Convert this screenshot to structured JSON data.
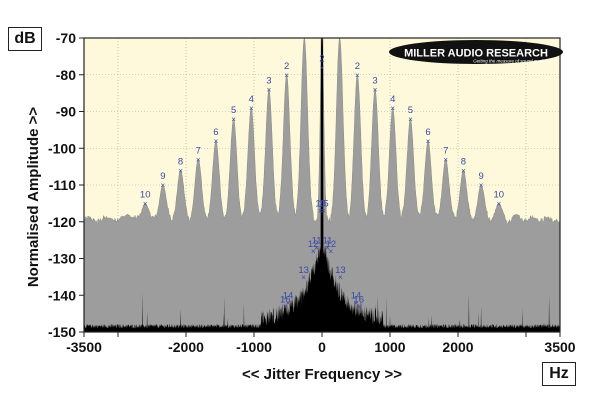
{
  "units": {
    "y": "dB",
    "x": "Hz"
  },
  "logo": {
    "name": "MILLER AUDIO RESEARCH",
    "tagline": "Getting the measure of sound quality"
  },
  "colors": {
    "background": "#fdf9da",
    "grey_series": "#9d9d9d",
    "black_series": "#000000",
    "markers": "#3949ab",
    "gridlines": "#a9a9a9"
  },
  "chart_data": {
    "type": "area",
    "title": "",
    "xlabel": "<< Jitter Frequency >>",
    "ylabel": "Normalised Amplitude >>",
    "xlim": [
      -3500,
      3500
    ],
    "ylim": [
      -150,
      -70
    ],
    "x_ticks": [
      -3500,
      -2000,
      -1000,
      0,
      1000,
      2000,
      3500
    ],
    "y_ticks": [
      -70,
      -80,
      -90,
      -100,
      -110,
      -120,
      -130,
      -140,
      -150
    ],
    "grid": true,
    "series": [
      {
        "values": {
          "floor": -119.5,
          "peak_spacing_hz": 260,
          "center_peak_db": -70,
          "sidebands": [
            {
              "n": 1,
              "x": 260,
              "y": -70
            },
            {
              "n": 2,
              "x": 520,
              "y": -80
            },
            {
              "n": 3,
              "x": 780,
              "y": -84
            },
            {
              "n": 4,
              "x": 1040,
              "y": -89
            },
            {
              "n": 5,
              "x": 1300,
              "y": -92
            },
            {
              "n": 6,
              "x": 1560,
              "y": -98
            },
            {
              "n": 7,
              "x": 1820,
              "y": -103
            },
            {
              "n": 8,
              "x": 2080,
              "y": -106
            },
            {
              "n": 9,
              "x": 2340,
              "y": -110
            },
            {
              "n": 10,
              "x": 2600,
              "y": -115
            },
            {
              "n": 11,
              "x": 2860,
              "y": -118
            },
            {
              "n": 12,
              "x": 3120,
              "y": -119
            },
            {
              "n": 13,
              "x": 3380,
              "y": -120
            }
          ]
        }
      },
      {
        "values": {
          "floor": -149,
          "center_peak_db": -73,
          "labelled_points": [
            {
              "label": "11",
              "x": -80,
              "y": -127
            },
            {
              "label": "12",
              "x": -130,
              "y": -128
            },
            {
              "label": "13",
              "x": -270,
              "y": -135
            },
            {
              "label": "14",
              "x": -500,
              "y": -142
            },
            {
              "label": "15",
              "x": -20,
              "y": -117
            },
            {
              "label": "16",
              "x": -540,
              "y": -143
            },
            {
              "label": "11",
              "x": 80,
              "y": -127
            },
            {
              "label": "12",
              "x": 130,
              "y": -128
            },
            {
              "label": "13",
              "x": 270,
              "y": -135
            },
            {
              "label": "14",
              "x": 500,
              "y": -142
            },
            {
              "label": "15",
              "x": 20,
              "y": -117
            },
            {
              "label": "16",
              "x": 540,
              "y": -143
            }
          ]
        }
      }
    ],
    "peak_labels": [
      {
        "label": "10",
        "x": -2600,
        "y": -115
      },
      {
        "label": "9",
        "x": -2340,
        "y": -110
      },
      {
        "label": "8",
        "x": -2080,
        "y": -106
      },
      {
        "label": "7",
        "x": -1820,
        "y": -103
      },
      {
        "label": "6",
        "x": -1560,
        "y": -98
      },
      {
        "label": "5",
        "x": -1300,
        "y": -92
      },
      {
        "label": "4",
        "x": -1040,
        "y": -89
      },
      {
        "label": "3",
        "x": -780,
        "y": -84
      },
      {
        "label": "2",
        "x": -520,
        "y": -80
      },
      {
        "label": "2",
        "x": 0,
        "y": -78
      },
      {
        "label": "2",
        "x": 520,
        "y": -80
      },
      {
        "label": "3",
        "x": 780,
        "y": -84
      },
      {
        "label": "4",
        "x": 1040,
        "y": -89
      },
      {
        "label": "5",
        "x": 1300,
        "y": -92
      },
      {
        "label": "6",
        "x": 1560,
        "y": -98
      },
      {
        "label": "7",
        "x": 1820,
        "y": -103
      },
      {
        "label": "8",
        "x": 2080,
        "y": -106
      },
      {
        "label": "9",
        "x": 2340,
        "y": -110
      },
      {
        "label": "10",
        "x": 2600,
        "y": -115
      }
    ]
  }
}
